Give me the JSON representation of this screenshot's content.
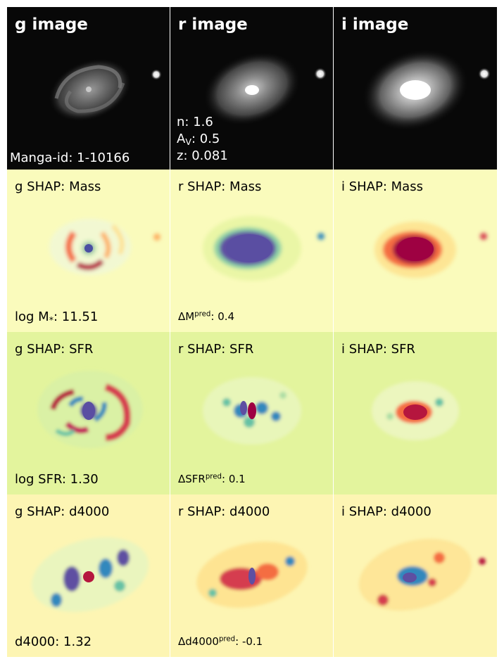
{
  "panels": {
    "g_image": {
      "title": "g image",
      "manga_label": "Manga-id: 1-10166"
    },
    "r_image": {
      "title": "r image",
      "n_label": "n: 1.6",
      "av_prefix": "A",
      "av_sub": "V",
      "av_value": ": 0.5",
      "z_label": "z: 0.081"
    },
    "i_image": {
      "title": "i image"
    },
    "g_mass": {
      "title": "g SHAP: Mass",
      "value_prefix": "log M",
      "value_sub": "*",
      "value_suffix": ": 11.51"
    },
    "r_mass": {
      "title": "r SHAP: Mass",
      "delta_prefix": "ΔM",
      "delta_sub": "*",
      "delta_sup": "pred",
      "delta_value": ": 0.4"
    },
    "i_mass": {
      "title": "i SHAP: Mass"
    },
    "g_sfr": {
      "title": "g SHAP: SFR",
      "value": "log SFR: 1.30"
    },
    "r_sfr": {
      "title": "r SHAP: SFR",
      "delta_prefix": "ΔSFR",
      "delta_sup": "pred",
      "delta_value": ": 0.1"
    },
    "i_sfr": {
      "title": "i SHAP: SFR"
    },
    "g_d4000": {
      "title": "g SHAP: d4000",
      "value": "d4000: 1.32"
    },
    "r_d4000": {
      "title": "r SHAP: d4000",
      "delta_prefix": "Δd4000",
      "delta_sup": "pred",
      "delta_value": ": -0.1"
    },
    "i_d4000": {
      "title": "i SHAP: d4000"
    }
  },
  "colors": {
    "image_bg": "#050505",
    "mass_bg": "#fafbbc",
    "sfr_bg": "#e3f49d",
    "d4000_bg": "#fdf5b3",
    "shap_positive": "#9e0142",
    "shap_negative": "#5e4fa2",
    "shap_blue": "#3a7dbc",
    "shap_orange": "#f46d43"
  }
}
